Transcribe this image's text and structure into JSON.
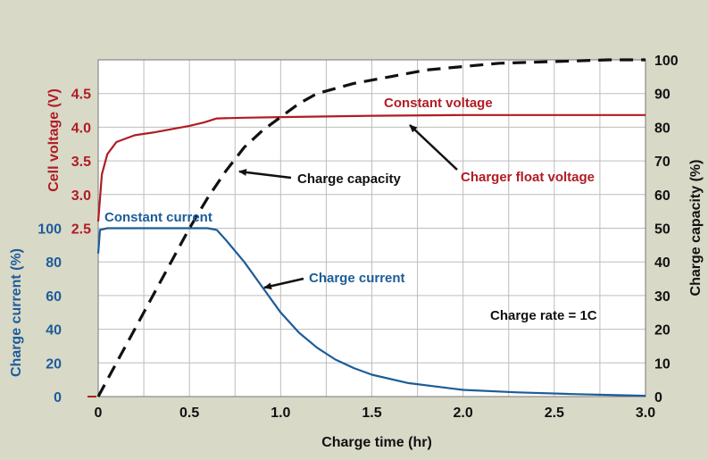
{
  "chart_data": {
    "type": "line",
    "xlabel": "Charge time (hr)",
    "xlim": [
      0,
      3.0
    ],
    "x_ticks": [
      "0",
      "0.5",
      "1.0",
      "1.5",
      "2.0",
      "2.5",
      "3.0"
    ],
    "y_left_voltage": {
      "label": "Cell voltage (V)",
      "ticks": [
        "2.5",
        "3.0",
        "3.5",
        "4.0",
        "4.5"
      ],
      "ylim": [
        0,
        5
      ],
      "color": "#b01c24"
    },
    "y_left_current": {
      "label": "Charge current (%)",
      "ticks": [
        "0",
        "20",
        "40",
        "60",
        "80",
        "100"
      ],
      "ylim": [
        0,
        200
      ],
      "color": "#1d5c99"
    },
    "y_right_capacity": {
      "label": "Charge capacity (%)",
      "ticks": [
        "0",
        "10",
        "20",
        "30",
        "40",
        "50",
        "60",
        "70",
        "80",
        "90",
        "100"
      ],
      "ylim": [
        0,
        100
      ],
      "color": "#111111"
    },
    "grid": true,
    "series": [
      {
        "axis": "voltage",
        "color": "#b01c24",
        "style": "solid",
        "x": [
          0,
          0.02,
          0.05,
          0.1,
          0.2,
          0.3,
          0.4,
          0.5,
          0.58,
          0.65,
          0.8,
          1.0,
          1.5,
          2.0,
          2.5,
          3.0
        ],
        "y": [
          2.6,
          3.3,
          3.6,
          3.78,
          3.88,
          3.92,
          3.97,
          4.02,
          4.07,
          4.13,
          4.14,
          4.15,
          4.17,
          4.18,
          4.18,
          4.18
        ]
      },
      {
        "axis": "current",
        "color": "#1d5c99",
        "style": "solid",
        "x": [
          0,
          0.01,
          0.05,
          0.2,
          0.4,
          0.6,
          0.65,
          0.7,
          0.8,
          0.9,
          1.0,
          1.1,
          1.2,
          1.3,
          1.4,
          1.5,
          1.7,
          2.0,
          2.3,
          2.6,
          3.0
        ],
        "y": [
          85,
          99,
          100,
          100,
          100,
          100,
          99,
          93,
          80,
          65,
          50,
          38,
          29,
          22,
          17,
          13,
          8,
          4,
          2.5,
          1.5,
          0.5
        ]
      },
      {
        "axis": "capacity",
        "color": "#111111",
        "style": "dashed",
        "x": [
          0,
          0.1,
          0.2,
          0.3,
          0.4,
          0.5,
          0.6,
          0.7,
          0.8,
          0.9,
          1.0,
          1.1,
          1.2,
          1.4,
          1.6,
          1.8,
          2.0,
          2.2,
          2.5,
          2.8,
          3.0
        ],
        "y": [
          0,
          10,
          20,
          30,
          40,
          50,
          59,
          67,
          74,
          79,
          83,
          87,
          90,
          93,
          95,
          97,
          98,
          99,
          99.5,
          100,
          100
        ]
      }
    ],
    "annotations": {
      "constant_voltage": "Constant voltage",
      "charge_capacity": "Charge capacity",
      "charger_float_voltage": "Charger float voltage",
      "constant_current": "Constant current",
      "charge_current": "Charge current",
      "charge_rate": "Charge rate = 1C"
    }
  }
}
